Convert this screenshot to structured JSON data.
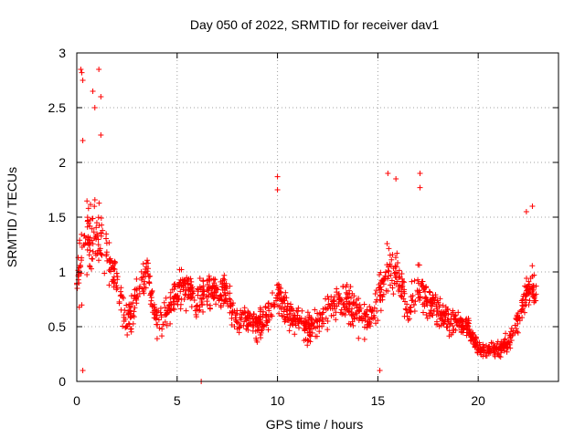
{
  "chart_data": {
    "type": "scatter",
    "title": "Day 050 of 2022, SRMTID for receiver dav1",
    "xlabel": "GPS time / hours",
    "ylabel": "SRMTID / TECUs",
    "xlim": [
      0,
      24
    ],
    "ylim": [
      0,
      3
    ],
    "xticks": [
      0,
      5,
      10,
      15,
      20
    ],
    "yticks": [
      0,
      0.5,
      1,
      1.5,
      2,
      2.5,
      3
    ],
    "xtick_labels": [
      "0",
      "5",
      "10",
      "15",
      "20"
    ],
    "ytick_labels": [
      "0",
      "0.5",
      "1",
      "1.5",
      "2",
      "2.5",
      "3"
    ],
    "grid": true,
    "marker": "+",
    "color": "#ff0000",
    "point_count": 1536,
    "profile_hours": [
      0.0,
      0.5,
      1.0,
      1.5,
      2.0,
      2.5,
      3.0,
      3.5,
      4.0,
      4.5,
      5.0,
      5.5,
      6.0,
      6.5,
      7.0,
      7.5,
      8.0,
      8.5,
      9.0,
      9.5,
      10.0,
      10.5,
      11.0,
      11.5,
      12.0,
      12.5,
      13.0,
      13.5,
      14.0,
      14.5,
      15.0,
      15.5,
      16.0,
      16.5,
      17.0,
      17.5,
      18.0,
      18.5,
      19.0,
      19.5,
      20.0,
      20.5,
      21.0,
      21.5,
      22.0,
      22.5,
      22.9
    ],
    "profile_mean": [
      0.9,
      1.3,
      1.4,
      1.2,
      0.9,
      0.55,
      0.8,
      1.0,
      0.55,
      0.6,
      0.85,
      0.85,
      0.75,
      0.85,
      0.8,
      0.8,
      0.55,
      0.55,
      0.5,
      0.6,
      0.8,
      0.65,
      0.55,
      0.5,
      0.55,
      0.65,
      0.7,
      0.7,
      0.65,
      0.55,
      0.75,
      1.0,
      1.0,
      0.65,
      0.85,
      0.75,
      0.65,
      0.55,
      0.55,
      0.5,
      0.3,
      0.28,
      0.3,
      0.35,
      0.55,
      0.9,
      0.8
    ],
    "profile_spread": [
      0.6,
      0.6,
      0.7,
      0.4,
      0.3,
      0.25,
      0.35,
      0.35,
      0.3,
      0.25,
      0.3,
      0.3,
      0.3,
      0.35,
      0.3,
      0.3,
      0.25,
      0.25,
      0.25,
      0.25,
      0.3,
      0.25,
      0.25,
      0.25,
      0.25,
      0.3,
      0.3,
      0.3,
      0.3,
      0.3,
      0.3,
      0.4,
      0.35,
      0.3,
      0.35,
      0.3,
      0.25,
      0.2,
      0.2,
      0.2,
      0.12,
      0.12,
      0.15,
      0.15,
      0.2,
      0.35,
      0.3
    ],
    "outliers": [
      {
        "x": 0.2,
        "y": 2.85
      },
      {
        "x": 0.25,
        "y": 2.82
      },
      {
        "x": 0.3,
        "y": 2.75
      },
      {
        "x": 1.1,
        "y": 2.85
      },
      {
        "x": 0.8,
        "y": 2.65
      },
      {
        "x": 0.9,
        "y": 2.5
      },
      {
        "x": 1.2,
        "y": 2.6
      },
      {
        "x": 0.3,
        "y": 2.2
      },
      {
        "x": 1.2,
        "y": 2.25
      },
      {
        "x": 10.0,
        "y": 1.87
      },
      {
        "x": 10.0,
        "y": 1.75
      },
      {
        "x": 15.5,
        "y": 1.9
      },
      {
        "x": 17.1,
        "y": 1.9
      },
      {
        "x": 17.1,
        "y": 1.77
      },
      {
        "x": 15.9,
        "y": 1.85
      },
      {
        "x": 0.3,
        "y": 0.1
      },
      {
        "x": 6.2,
        "y": 0.0
      },
      {
        "x": 15.1,
        "y": 0.1
      },
      {
        "x": 22.4,
        "y": 1.55
      },
      {
        "x": 22.7,
        "y": 1.6
      }
    ]
  }
}
